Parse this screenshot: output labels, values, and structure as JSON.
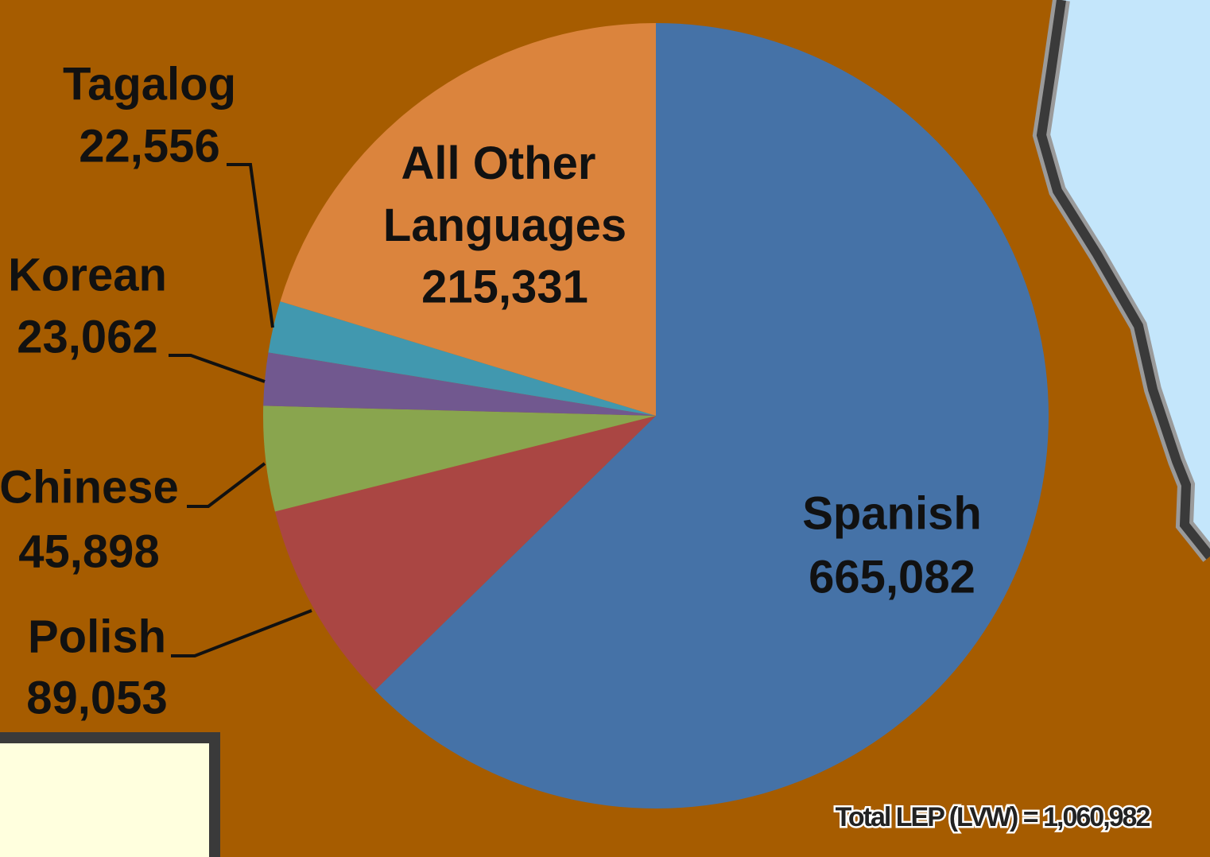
{
  "chart_data": {
    "type": "pie",
    "categories": [
      "Spanish",
      "Polish",
      "Chinese",
      "Korean",
      "Tagalog",
      "All Other Languages"
    ],
    "values": [
      665082,
      89053,
      45898,
      23062,
      22556,
      215331
    ],
    "value_labels": [
      "665,082",
      "89,053",
      "45,898",
      "23,062",
      "22,556",
      "215,331"
    ],
    "colors": [
      "#4572a7",
      "#aa4643",
      "#89a54e",
      "#71588f",
      "#4198af",
      "#db843d"
    ],
    "annotation": "Total LEP (LVW) = 1,060,982"
  }
}
